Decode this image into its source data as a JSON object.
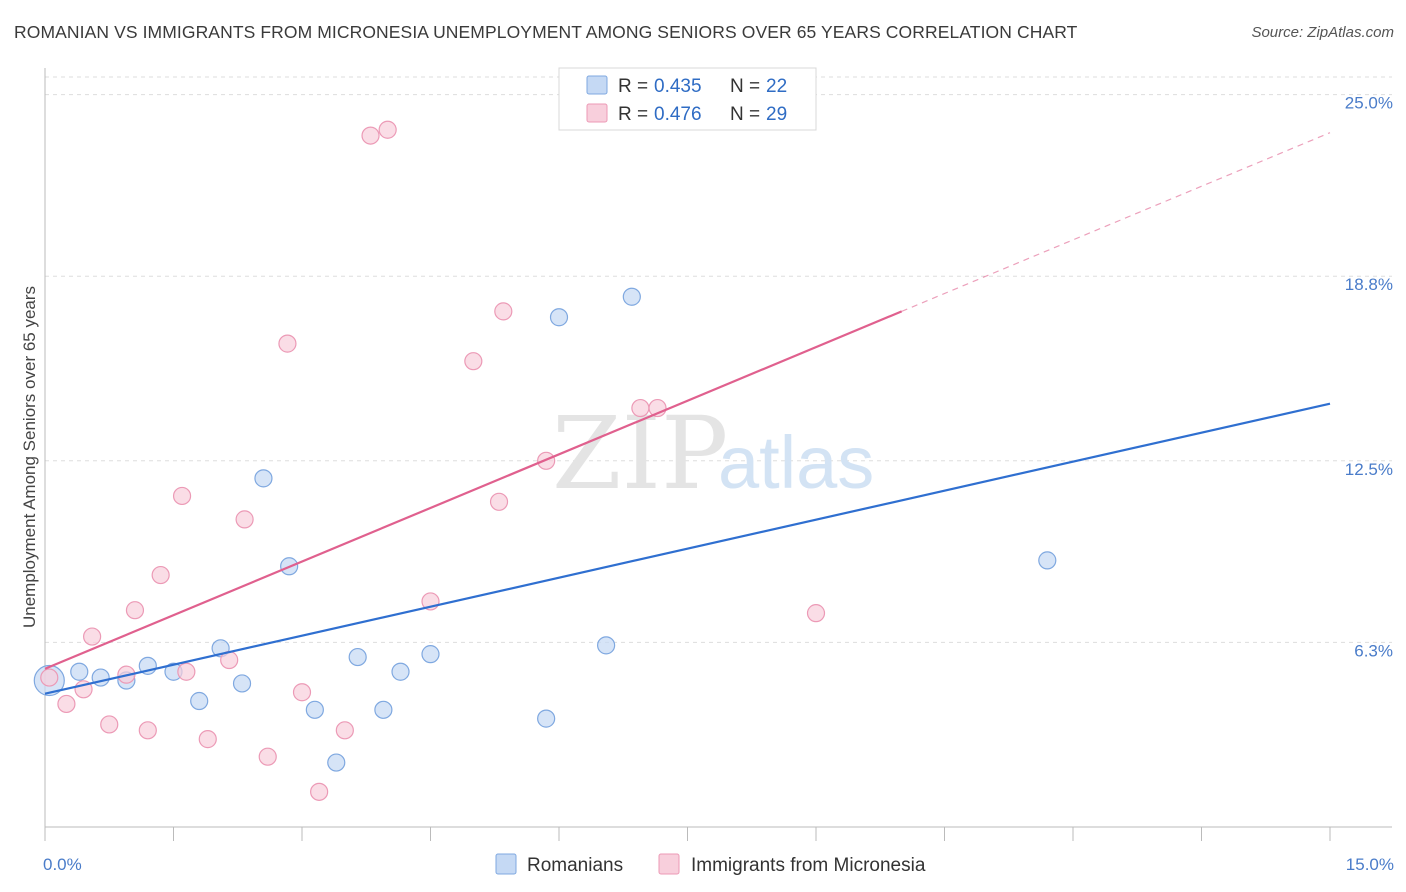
{
  "title": "ROMANIAN VS IMMIGRANTS FROM MICRONESIA UNEMPLOYMENT AMONG SENIORS OVER 65 YEARS CORRELATION CHART",
  "source": "Source: ZipAtlas.com",
  "watermark": {
    "zip": "ZIP",
    "atlas": "atlas"
  },
  "colors": {
    "blue": "#2f6fd0",
    "blue_fill": "#c5d9f4",
    "blue_stroke": "#7fa8e0",
    "pink": "#e0608e",
    "pink_fill": "#f8cfdc",
    "pink_stroke": "#ec9ab6",
    "grid": "#dddddd",
    "tick_label": "#4a7cc9"
  },
  "legend": {
    "r_label": "R =",
    "n_label": "N =",
    "rows": [
      {
        "series": "Romanians",
        "r": "0.435",
        "n": "22"
      },
      {
        "series": "Immigrants from Micronesia",
        "r": "0.476",
        "n": "29"
      }
    ]
  },
  "chart_data": {
    "type": "scatter",
    "title": "ROMANIAN VS IMMIGRANTS FROM MICRONESIA UNEMPLOYMENT AMONG SENIORS OVER 65 YEARS CORRELATION CHART",
    "xlabel": "",
    "ylabel": "Unemployment Among Seniors over 65 years",
    "xlim": [
      0,
      15
    ],
    "ylim": [
      0,
      25.6
    ],
    "x_tick_labels": [
      {
        "value": 0,
        "label": "0.0%"
      },
      {
        "value": 15,
        "label": "15.0%"
      }
    ],
    "y_ticks": [
      {
        "value": 6.3,
        "label": "6.3%"
      },
      {
        "value": 12.5,
        "label": "12.5%"
      },
      {
        "value": 18.8,
        "label": "18.8%"
      },
      {
        "value": 25.0,
        "label": "25.0%"
      }
    ],
    "legend_position": "top-center",
    "series": [
      {
        "name": "Romanians",
        "color_key": "blue",
        "points": [
          {
            "x": 0.05,
            "y": 5.0,
            "big": true
          },
          {
            "x": 0.4,
            "y": 5.3
          },
          {
            "x": 0.65,
            "y": 5.1
          },
          {
            "x": 0.95,
            "y": 5.0
          },
          {
            "x": 1.2,
            "y": 5.5
          },
          {
            "x": 1.5,
            "y": 5.3
          },
          {
            "x": 1.8,
            "y": 4.3
          },
          {
            "x": 2.05,
            "y": 6.1
          },
          {
            "x": 2.3,
            "y": 4.9
          },
          {
            "x": 2.55,
            "y": 11.9
          },
          {
            "x": 2.85,
            "y": 8.9
          },
          {
            "x": 3.15,
            "y": 4.0
          },
          {
            "x": 3.4,
            "y": 2.2
          },
          {
            "x": 3.65,
            "y": 5.8
          },
          {
            "x": 3.95,
            "y": 4.0
          },
          {
            "x": 4.15,
            "y": 5.3
          },
          {
            "x": 4.5,
            "y": 5.9
          },
          {
            "x": 5.85,
            "y": 3.7
          },
          {
            "x": 6.0,
            "y": 17.4
          },
          {
            "x": 6.55,
            "y": 6.2
          },
          {
            "x": 6.85,
            "y": 18.1
          },
          {
            "x": 11.7,
            "y": 9.1
          }
        ],
        "trend": {
          "x0": 0,
          "y0": 4.55,
          "x1": 15,
          "y1": 14.45,
          "dashed_x1": 15
        }
      },
      {
        "name": "Immigrants from Micronesia",
        "color_key": "pink",
        "points": [
          {
            "x": 0.05,
            "y": 5.1
          },
          {
            "x": 0.25,
            "y": 4.2
          },
          {
            "x": 0.45,
            "y": 4.7
          },
          {
            "x": 0.55,
            "y": 6.5
          },
          {
            "x": 0.75,
            "y": 3.5
          },
          {
            "x": 0.95,
            "y": 5.2
          },
          {
            "x": 1.05,
            "y": 7.4
          },
          {
            "x": 1.2,
            "y": 3.3
          },
          {
            "x": 1.35,
            "y": 8.6
          },
          {
            "x": 1.6,
            "y": 11.3
          },
          {
            "x": 1.65,
            "y": 5.3
          },
          {
            "x": 1.9,
            "y": 3.0
          },
          {
            "x": 2.15,
            "y": 5.7
          },
          {
            "x": 2.33,
            "y": 10.5
          },
          {
            "x": 2.6,
            "y": 2.4
          },
          {
            "x": 2.83,
            "y": 16.5
          },
          {
            "x": 3.0,
            "y": 4.6
          },
          {
            "x": 3.2,
            "y": 1.2
          },
          {
            "x": 3.5,
            "y": 3.3
          },
          {
            "x": 3.8,
            "y": 23.6
          },
          {
            "x": 4.0,
            "y": 23.8
          },
          {
            "x": 4.5,
            "y": 7.7
          },
          {
            "x": 5.0,
            "y": 15.9
          },
          {
            "x": 5.3,
            "y": 11.1
          },
          {
            "x": 5.35,
            "y": 17.6
          },
          {
            "x": 5.85,
            "y": 12.5
          },
          {
            "x": 6.95,
            "y": 14.3
          },
          {
            "x": 7.15,
            "y": 14.3
          },
          {
            "x": 9.0,
            "y": 7.3
          }
        ],
        "trend": {
          "x0": 0,
          "y0": 5.4,
          "x1": 10.0,
          "y1": 17.6,
          "dashed_x1": 15,
          "dashed_y1": 23.7
        }
      }
    ]
  }
}
